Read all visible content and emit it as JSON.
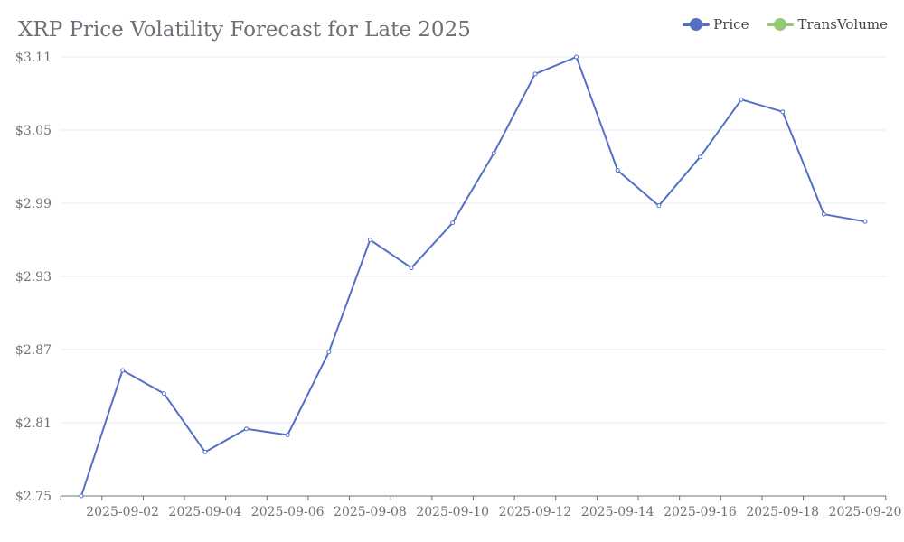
{
  "title": "XRP Price Volatility Forecast for Late 2025",
  "legend": {
    "price_label": "Price",
    "trans_label": "TransVolume"
  },
  "colors": {
    "price": "#5470c6",
    "transvolume": "#91cc75",
    "grid": "#e6eaf5",
    "axis": "#6e7079"
  },
  "chart_data": {
    "type": "line",
    "title": "XRP Price Volatility Forecast for Late 2025",
    "x_tick_labels": [
      "2025-09-02",
      "2025-09-04",
      "2025-09-06",
      "2025-09-08",
      "2025-09-10",
      "2025-09-12",
      "2025-09-14",
      "2025-09-16",
      "2025-09-18",
      "2025-09-20"
    ],
    "y_tick_labels": [
      "$2.75",
      "$2.81",
      "$2.87",
      "$2.93",
      "$2.99",
      "$3.05",
      "$3.11"
    ],
    "ylim": [
      2.75,
      3.11
    ],
    "x_range": [
      "2025-09-01",
      "2025-09-20"
    ],
    "grid": true,
    "legend_position": "top-right",
    "series": [
      {
        "name": "Price",
        "x": [
          "2025-09-01",
          "2025-09-02",
          "2025-09-03",
          "2025-09-04",
          "2025-09-05",
          "2025-09-06",
          "2025-09-07",
          "2025-09-08",
          "2025-09-09",
          "2025-09-10",
          "2025-09-11",
          "2025-09-12",
          "2025-09-13",
          "2025-09-14",
          "2025-09-15",
          "2025-09-16",
          "2025-09-17",
          "2025-09-18",
          "2025-09-19",
          "2025-09-20"
        ],
        "values": [
          2.75,
          2.853,
          2.834,
          2.786,
          2.805,
          2.8,
          2.868,
          2.96,
          2.937,
          2.974,
          3.031,
          3.096,
          3.11,
          3.017,
          2.988,
          3.028,
          3.075,
          3.065,
          2.981,
          2.975
        ]
      },
      {
        "name": "TransVolume",
        "values": []
      }
    ]
  }
}
